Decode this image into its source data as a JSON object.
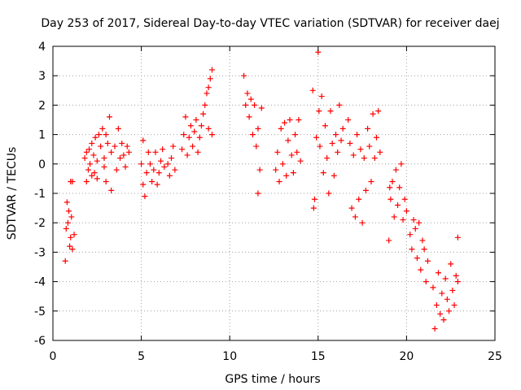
{
  "chart_data": {
    "type": "scatter",
    "title": "Day 253 of 2017, Sidereal Day-to-day VTEC variation (SDTVAR) for receiver daej",
    "xlabel": "GPS time / hours",
    "ylabel": "SDTVAR / TECUs",
    "xlim": [
      0,
      25
    ],
    "ylim": [
      -6,
      4
    ],
    "x_ticks": [
      0,
      5,
      10,
      15,
      20,
      25
    ],
    "y_ticks": [
      -6,
      -5,
      -4,
      -3,
      -2,
      -1,
      0,
      1,
      2,
      3,
      4
    ],
    "grid": true,
    "marker": "+",
    "colors": {
      "series": "#ff0000",
      "grid": "#a0a0a0",
      "axis": "#000000"
    },
    "series": [
      {
        "name": "SDTVAR",
        "points": [
          [
            0.7,
            -3.3
          ],
          [
            0.75,
            -2.2
          ],
          [
            0.8,
            -1.3
          ],
          [
            0.85,
            -2.0
          ],
          [
            0.9,
            -1.6
          ],
          [
            0.95,
            -2.8
          ],
          [
            1.0,
            -0.6
          ],
          [
            1.0,
            -2.5
          ],
          [
            1.05,
            -1.8
          ],
          [
            1.1,
            -0.6
          ],
          [
            1.1,
            -2.9
          ],
          [
            1.2,
            -2.4
          ],
          [
            1.8,
            0.2
          ],
          [
            1.9,
            -0.6
          ],
          [
            1.9,
            0.4
          ],
          [
            2.0,
            -0.2
          ],
          [
            2.05,
            0.5
          ],
          [
            2.1,
            0.0
          ],
          [
            2.2,
            -0.4
          ],
          [
            2.2,
            0.7
          ],
          [
            2.3,
            0.3
          ],
          [
            2.35,
            -0.3
          ],
          [
            2.4,
            0.9
          ],
          [
            2.5,
            0.1
          ],
          [
            2.5,
            -0.5
          ],
          [
            2.6,
            1.0
          ],
          [
            2.7,
            0.6
          ],
          [
            2.8,
            1.2
          ],
          [
            2.9,
            0.2
          ],
          [
            2.9,
            -0.1
          ],
          [
            3.0,
            1.0
          ],
          [
            3.0,
            -0.6
          ],
          [
            3.1,
            0.7
          ],
          [
            3.2,
            1.6
          ],
          [
            3.3,
            -0.9
          ],
          [
            3.3,
            0.4
          ],
          [
            3.5,
            0.6
          ],
          [
            3.6,
            -0.2
          ],
          [
            3.7,
            1.2
          ],
          [
            3.8,
            0.2
          ],
          [
            3.9,
            0.7
          ],
          [
            4.0,
            0.3
          ],
          [
            4.1,
            -0.1
          ],
          [
            4.2,
            0.6
          ],
          [
            4.3,
            0.4
          ],
          [
            5.0,
            0.0
          ],
          [
            5.1,
            -0.7
          ],
          [
            5.1,
            0.8
          ],
          [
            5.2,
            -1.1
          ],
          [
            5.3,
            -0.3
          ],
          [
            5.4,
            0.4
          ],
          [
            5.5,
            0.0
          ],
          [
            5.6,
            -0.6
          ],
          [
            5.7,
            -0.2
          ],
          [
            5.8,
            0.4
          ],
          [
            5.9,
            -0.7
          ],
          [
            6.0,
            -0.3
          ],
          [
            6.1,
            0.1
          ],
          [
            6.2,
            0.5
          ],
          [
            6.3,
            -0.1
          ],
          [
            6.5,
            0.0
          ],
          [
            6.6,
            -0.4
          ],
          [
            6.7,
            0.2
          ],
          [
            6.8,
            0.6
          ],
          [
            6.9,
            -0.2
          ],
          [
            7.3,
            0.5
          ],
          [
            7.4,
            1.0
          ],
          [
            7.5,
            1.6
          ],
          [
            7.6,
            0.3
          ],
          [
            7.7,
            0.9
          ],
          [
            7.8,
            1.3
          ],
          [
            7.9,
            0.6
          ],
          [
            8.0,
            1.1
          ],
          [
            8.1,
            1.5
          ],
          [
            8.2,
            0.4
          ],
          [
            8.3,
            0.9
          ],
          [
            8.4,
            1.3
          ],
          [
            8.5,
            1.7
          ],
          [
            8.6,
            2.0
          ],
          [
            8.7,
            2.4
          ],
          [
            8.8,
            1.2
          ],
          [
            8.8,
            2.6
          ],
          [
            8.9,
            2.9
          ],
          [
            9.0,
            3.2
          ],
          [
            9.0,
            1.0
          ],
          [
            10.8,
            3.0
          ],
          [
            10.9,
            2.0
          ],
          [
            11.0,
            2.4
          ],
          [
            11.1,
            1.6
          ],
          [
            11.2,
            2.2
          ],
          [
            11.3,
            1.0
          ],
          [
            11.4,
            2.0
          ],
          [
            11.5,
            0.6
          ],
          [
            11.6,
            1.2
          ],
          [
            11.6,
            -1.0
          ],
          [
            11.7,
            -0.2
          ],
          [
            11.8,
            1.9
          ],
          [
            12.6,
            -0.2
          ],
          [
            12.7,
            0.4
          ],
          [
            12.8,
            -0.6
          ],
          [
            12.9,
            1.2
          ],
          [
            13.0,
            0.0
          ],
          [
            13.1,
            1.4
          ],
          [
            13.2,
            -0.4
          ],
          [
            13.3,
            0.8
          ],
          [
            13.4,
            1.5
          ],
          [
            13.5,
            0.3
          ],
          [
            13.6,
            -0.3
          ],
          [
            13.7,
            1.0
          ],
          [
            13.8,
            0.4
          ],
          [
            13.9,
            1.5
          ],
          [
            14.0,
            0.1
          ],
          [
            14.7,
            2.5
          ],
          [
            14.75,
            -1.5
          ],
          [
            14.8,
            -1.2
          ],
          [
            14.9,
            0.9
          ],
          [
            15.0,
            3.8
          ],
          [
            15.05,
            1.8
          ],
          [
            15.1,
            0.6
          ],
          [
            15.2,
            2.3
          ],
          [
            15.3,
            -0.3
          ],
          [
            15.4,
            1.3
          ],
          [
            15.5,
            0.2
          ],
          [
            15.6,
            -1.0
          ],
          [
            15.7,
            1.8
          ],
          [
            15.8,
            0.7
          ],
          [
            15.9,
            -0.4
          ],
          [
            16.0,
            1.0
          ],
          [
            16.1,
            0.4
          ],
          [
            16.2,
            2.0
          ],
          [
            16.3,
            0.8
          ],
          [
            16.4,
            1.2
          ],
          [
            16.7,
            1.5
          ],
          [
            16.8,
            0.7
          ],
          [
            16.9,
            -1.5
          ],
          [
            17.0,
            0.3
          ],
          [
            17.1,
            -1.8
          ],
          [
            17.2,
            1.0
          ],
          [
            17.3,
            -1.2
          ],
          [
            17.4,
            0.5
          ],
          [
            17.5,
            -2.0
          ],
          [
            17.6,
            0.2
          ],
          [
            17.7,
            -0.9
          ],
          [
            17.8,
            1.2
          ],
          [
            17.9,
            0.6
          ],
          [
            18.0,
            -0.6
          ],
          [
            18.1,
            1.7
          ],
          [
            18.2,
            0.2
          ],
          [
            18.3,
            0.9
          ],
          [
            18.4,
            1.8
          ],
          [
            18.5,
            0.4
          ],
          [
            19.0,
            -2.6
          ],
          [
            19.05,
            -0.8
          ],
          [
            19.1,
            -1.2
          ],
          [
            19.2,
            -0.6
          ],
          [
            19.3,
            -1.8
          ],
          [
            19.4,
            -0.2
          ],
          [
            19.5,
            -1.4
          ],
          [
            19.6,
            -0.8
          ],
          [
            19.7,
            0.0
          ],
          [
            19.8,
            -1.9
          ],
          [
            19.9,
            -1.2
          ],
          [
            20.0,
            -1.6
          ],
          [
            20.2,
            -2.4
          ],
          [
            20.3,
            -2.9
          ],
          [
            20.4,
            -1.9
          ],
          [
            20.5,
            -2.2
          ],
          [
            20.6,
            -3.2
          ],
          [
            20.7,
            -2.0
          ],
          [
            20.8,
            -3.6
          ],
          [
            20.9,
            -2.6
          ],
          [
            21.0,
            -2.9
          ],
          [
            21.1,
            -4.0
          ],
          [
            21.2,
            -3.3
          ],
          [
            21.5,
            -4.2
          ],
          [
            21.6,
            -5.6
          ],
          [
            21.7,
            -4.8
          ],
          [
            21.8,
            -3.7
          ],
          [
            21.9,
            -5.1
          ],
          [
            22.0,
            -4.4
          ],
          [
            22.1,
            -5.3
          ],
          [
            22.2,
            -3.9
          ],
          [
            22.3,
            -4.6
          ],
          [
            22.4,
            -5.0
          ],
          [
            22.5,
            -3.4
          ],
          [
            22.6,
            -4.3
          ],
          [
            22.7,
            -4.8
          ],
          [
            22.8,
            -3.8
          ],
          [
            22.9,
            -2.5
          ],
          [
            22.9,
            -4.0
          ]
        ]
      }
    ]
  }
}
